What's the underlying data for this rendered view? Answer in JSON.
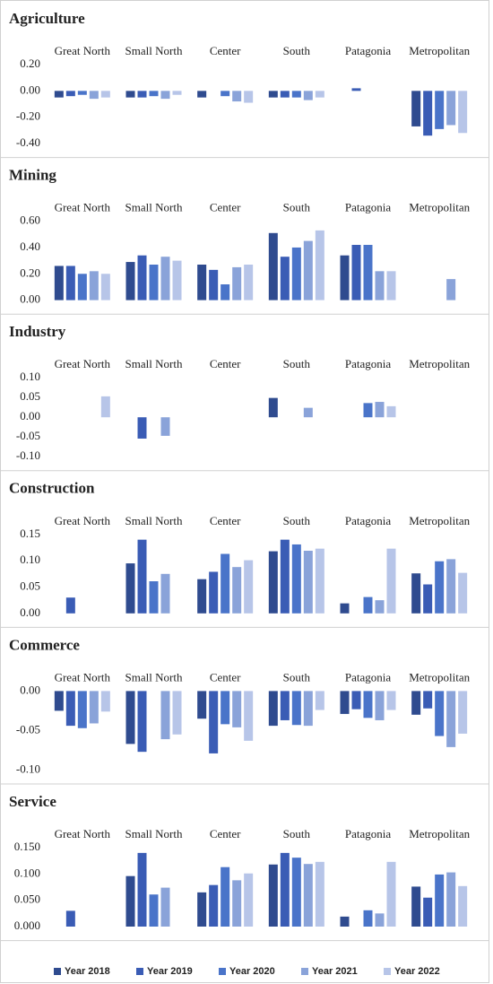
{
  "chart_data": [
    {
      "type": "bar",
      "title": "Agriculture",
      "categories": [
        "Great North",
        "Small North",
        "Center",
        "South",
        "Patagonia",
        "Metropolitan"
      ],
      "series": [
        {
          "name": "Year 2018",
          "color": "#2f4b8f",
          "values": [
            -0.05,
            -0.05,
            -0.05,
            -0.05,
            null,
            -0.27
          ]
        },
        {
          "name": "Year 2019",
          "color": "#3a5cb5",
          "values": [
            -0.04,
            -0.05,
            null,
            -0.05,
            0.02,
            -0.34
          ]
        },
        {
          "name": "Year 2020",
          "color": "#4a74c9",
          "values": [
            -0.03,
            -0.04,
            -0.04,
            -0.05,
            null,
            -0.29
          ]
        },
        {
          "name": "Year 2021",
          "color": "#8aa3d9",
          "values": [
            -0.06,
            -0.06,
            -0.08,
            -0.07,
            null,
            -0.26
          ]
        },
        {
          "name": "Year 2022",
          "color": "#b7c5e8",
          "values": [
            -0.05,
            -0.03,
            -0.09,
            -0.05,
            null,
            -0.32
          ]
        }
      ],
      "ylim": [
        -0.4,
        0.2
      ],
      "yticks": [
        {
          "value": 0.2,
          "label": "0.20"
        },
        {
          "value": 0,
          "label": "0.00"
        },
        {
          "value": -0.2,
          "label": "-0.20"
        },
        {
          "value": -0.4,
          "label": "-0.40"
        }
      ]
    },
    {
      "type": "bar",
      "title": "Mining",
      "categories": [
        "Great North",
        "Small North",
        "Center",
        "South",
        "Patagonia",
        "Metropolitan"
      ],
      "series": [
        {
          "color": "#2f4b8f",
          "values": [
            0.26,
            0.29,
            0.27,
            0.51,
            0.34,
            null
          ]
        },
        {
          "color": "#3a5cb5",
          "values": [
            0.26,
            0.34,
            0.23,
            0.33,
            0.42,
            null
          ]
        },
        {
          "color": "#4a74c9",
          "values": [
            0.2,
            0.27,
            0.12,
            0.4,
            0.42,
            null
          ]
        },
        {
          "color": "#8aa3d9",
          "values": [
            0.22,
            0.33,
            0.25,
            0.45,
            0.22,
            0.16
          ]
        },
        {
          "color": "#b7c5e8",
          "values": [
            0.2,
            0.3,
            0.27,
            0.53,
            0.22,
            null
          ]
        }
      ],
      "ylim": [
        0,
        0.6
      ],
      "yticks": [
        {
          "value": 0.6,
          "label": "0.60"
        },
        {
          "value": 0.4,
          "label": "0.40"
        },
        {
          "value": 0.2,
          "label": "0.20"
        },
        {
          "value": 0,
          "label": "0.00"
        }
      ]
    },
    {
      "type": "bar",
      "title": "Industry",
      "categories": [
        "Great North",
        "Small North",
        "Center",
        "South",
        "Patagonia",
        "Metropolitan"
      ],
      "series": [
        {
          "color": "#2f4b8f",
          "values": [
            null,
            null,
            null,
            0.049,
            null,
            null
          ]
        },
        {
          "color": "#3a5cb5",
          "values": [
            null,
            -0.054,
            null,
            null,
            null,
            null
          ]
        },
        {
          "color": "#4a74c9",
          "values": [
            null,
            null,
            null,
            null,
            0.036,
            null
          ]
        },
        {
          "color": "#8aa3d9",
          "values": [
            null,
            -0.047,
            null,
            0.024,
            0.039,
            null
          ]
        },
        {
          "color": "#b7c5e8",
          "values": [
            0.053,
            null,
            null,
            null,
            0.028,
            null
          ]
        }
      ],
      "ylim": [
        -0.1,
        0.1
      ],
      "yticks": [
        {
          "value": 0.1,
          "label": "0.10"
        },
        {
          "value": 0.05,
          "label": "0.05"
        },
        {
          "value": 0,
          "label": "0.00"
        },
        {
          "value": -0.05,
          "label": "-0.05"
        },
        {
          "value": -0.1,
          "label": "-0.10"
        }
      ]
    },
    {
      "type": "bar",
      "title": "Construction",
      "categories": [
        "Great North",
        "Small North",
        "Center",
        "South",
        "Patagonia",
        "Metropolitan"
      ],
      "series": [
        {
          "color": "#2f4b8f",
          "values": [
            null,
            0.095,
            0.065,
            0.118,
            0.019,
            0.076
          ]
        },
        {
          "color": "#3a5cb5",
          "values": [
            0.03,
            0.14,
            0.079,
            0.14,
            null,
            0.055
          ]
        },
        {
          "color": "#4a74c9",
          "values": [
            null,
            0.061,
            0.113,
            0.131,
            0.031,
            0.099
          ]
        },
        {
          "color": "#8aa3d9",
          "values": [
            null,
            0.075,
            0.088,
            0.119,
            0.025,
            0.103
          ]
        },
        {
          "color": "#b7c5e8",
          "values": [
            null,
            null,
            0.101,
            0.123,
            0.123,
            0.077
          ]
        }
      ],
      "ylim": [
        0,
        0.15
      ],
      "yticks": [
        {
          "value": 0.15,
          "label": "0.15"
        },
        {
          "value": 0.1,
          "label": "0.10"
        },
        {
          "value": 0.05,
          "label": "0.05"
        },
        {
          "value": 0,
          "label": "0.00"
        }
      ]
    },
    {
      "type": "bar",
      "title": "Commerce",
      "categories": [
        "Great North",
        "Small North",
        "Center",
        "South",
        "Patagonia",
        "Metropolitan"
      ],
      "series": [
        {
          "color": "#2f4b8f",
          "values": [
            -0.025,
            -0.067,
            -0.035,
            -0.044,
            -0.029,
            -0.03
          ]
        },
        {
          "color": "#3a5cb5",
          "values": [
            -0.044,
            -0.077,
            -0.079,
            -0.037,
            -0.023,
            -0.022
          ]
        },
        {
          "color": "#4a74c9",
          "values": [
            -0.047,
            null,
            -0.042,
            -0.043,
            -0.034,
            -0.057
          ]
        },
        {
          "color": "#8aa3d9",
          "values": [
            -0.041,
            -0.061,
            -0.046,
            -0.044,
            -0.037,
            -0.071
          ]
        },
        {
          "color": "#b7c5e8",
          "values": [
            -0.026,
            -0.055,
            -0.063,
            -0.024,
            -0.024,
            -0.054
          ]
        }
      ],
      "ylim": [
        -0.1,
        0
      ],
      "yticks": [
        {
          "value": 0,
          "label": "0.00"
        },
        {
          "value": -0.05,
          "label": "-0.05"
        },
        {
          "value": -0.1,
          "label": "-0.10"
        }
      ]
    },
    {
      "type": "bar",
      "title": "Service",
      "categories": [
        "Great North",
        "Small North",
        "Center",
        "South",
        "Patagonia",
        "Metropolitan"
      ],
      "series": [
        {
          "color": "#2f4b8f",
          "values": [
            null,
            0.096,
            0.065,
            0.118,
            0.019,
            0.076
          ]
        },
        {
          "color": "#3a5cb5",
          "values": [
            0.03,
            0.14,
            0.079,
            0.14,
            null,
            0.055
          ]
        },
        {
          "color": "#4a74c9",
          "values": [
            null,
            0.061,
            0.113,
            0.131,
            0.031,
            0.099
          ]
        },
        {
          "color": "#8aa3d9",
          "values": [
            null,
            0.074,
            0.088,
            0.119,
            0.025,
            0.103
          ]
        },
        {
          "color": "#b7c5e8",
          "values": [
            null,
            null,
            0.101,
            0.123,
            0.123,
            0.077
          ]
        }
      ],
      "ylim": [
        0,
        0.15
      ],
      "yticks": [
        {
          "value": 0.15,
          "label": "0.150"
        },
        {
          "value": 0.1,
          "label": "0.100"
        },
        {
          "value": 0.05,
          "label": "0.050"
        },
        {
          "value": 0,
          "label": "0.000"
        }
      ]
    }
  ]
}
